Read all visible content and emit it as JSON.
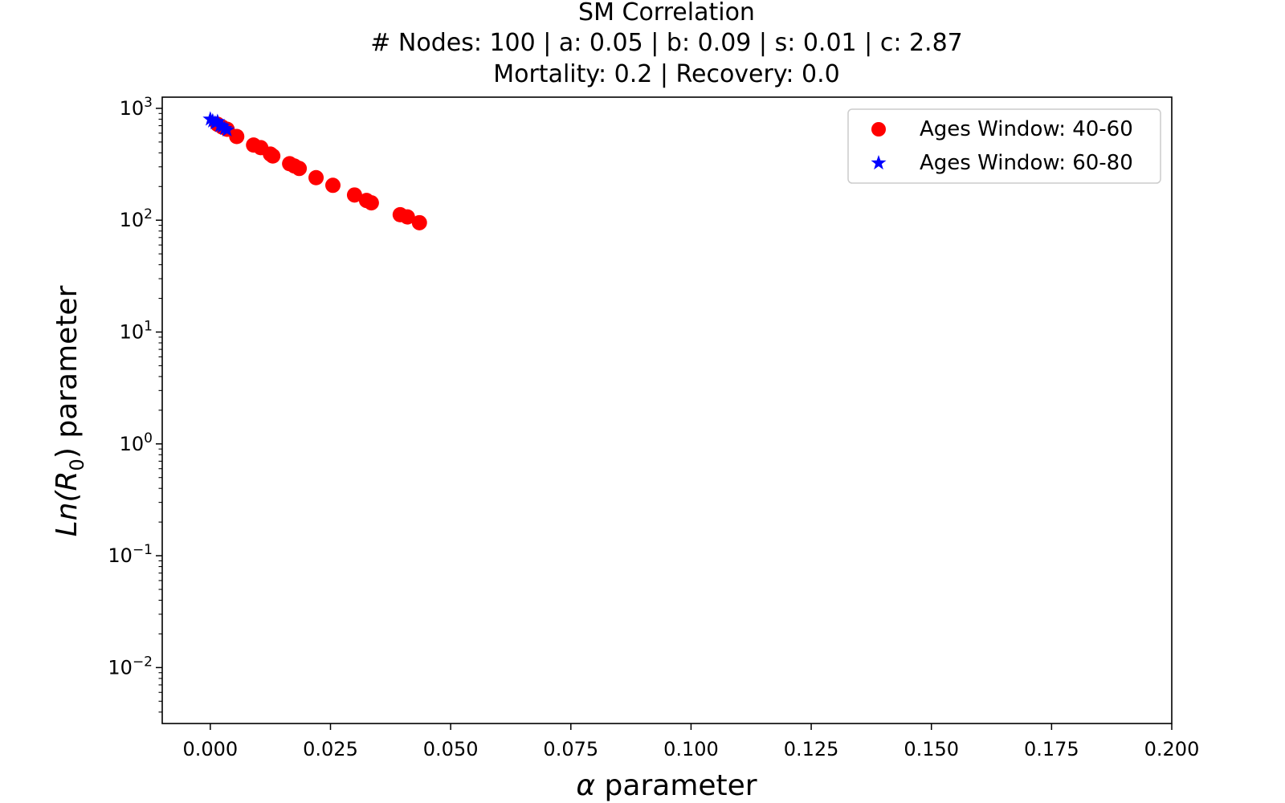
{
  "chart_data": {
    "type": "scatter",
    "title": "SM Correlation",
    "subtitle_lines": [
      "# Nodes: 100 | a: 0.05 | b: 0.09 | s: 0.01 | c: 2.87",
      "Mortality: 0.2 | Recovery: 0.0"
    ],
    "xlabel_symbol": "α",
    "xlabel_text": " parameter",
    "ylabel_main": "Ln(R",
    "ylabel_sub": "0",
    "ylabel_tail": ") parameter",
    "xlim": [
      -0.01,
      0.2
    ],
    "ylim_log10": [
      -2.5,
      3.1
    ],
    "x_scale": "linear",
    "y_scale": "log",
    "x_ticks": [
      {
        "value": 0.0,
        "label": "0.000"
      },
      {
        "value": 0.025,
        "label": "0.025"
      },
      {
        "value": 0.05,
        "label": "0.050"
      },
      {
        "value": 0.075,
        "label": "0.075"
      },
      {
        "value": 0.1,
        "label": "0.100"
      },
      {
        "value": 0.125,
        "label": "0.125"
      },
      {
        "value": 0.15,
        "label": "0.150"
      },
      {
        "value": 0.175,
        "label": "0.175"
      },
      {
        "value": 0.2,
        "label": "0.200"
      }
    ],
    "y_ticks": [
      {
        "exp": 3,
        "base": "10",
        "sup": "3"
      },
      {
        "exp": 2,
        "base": "10",
        "sup": "2"
      },
      {
        "exp": 1,
        "base": "10",
        "sup": "1"
      },
      {
        "exp": 0,
        "base": "10",
        "sup": "0"
      },
      {
        "exp": -1,
        "base": "10",
        "sup": "−1"
      },
      {
        "exp": -2,
        "base": "10",
        "sup": "−2"
      }
    ],
    "legend_position": "top-right",
    "series": [
      {
        "name": "Ages Window: 40-60",
        "marker": "circle",
        "color": "#ff0000",
        "points": [
          {
            "x": 0.0015,
            "y": 720
          },
          {
            "x": 0.0025,
            "y": 680
          },
          {
            "x": 0.0035,
            "y": 650
          },
          {
            "x": 0.0055,
            "y": 560
          },
          {
            "x": 0.009,
            "y": 470
          },
          {
            "x": 0.0105,
            "y": 445
          },
          {
            "x": 0.0125,
            "y": 390
          },
          {
            "x": 0.013,
            "y": 375
          },
          {
            "x": 0.0165,
            "y": 320
          },
          {
            "x": 0.0175,
            "y": 305
          },
          {
            "x": 0.0185,
            "y": 290
          },
          {
            "x": 0.022,
            "y": 240
          },
          {
            "x": 0.0255,
            "y": 205
          },
          {
            "x": 0.03,
            "y": 168
          },
          {
            "x": 0.0325,
            "y": 150
          },
          {
            "x": 0.0335,
            "y": 143
          },
          {
            "x": 0.0395,
            "y": 112
          },
          {
            "x": 0.041,
            "y": 107
          },
          {
            "x": 0.0435,
            "y": 95
          }
        ]
      },
      {
        "name": "Ages Window: 60-80",
        "marker": "star",
        "color": "#0000ff",
        "points": [
          {
            "x": 0.0,
            "y": 800
          },
          {
            "x": 0.0005,
            "y": 770
          },
          {
            "x": 0.001,
            "y": 740
          },
          {
            "x": 0.0015,
            "y": 760
          },
          {
            "x": 0.002,
            "y": 700
          },
          {
            "x": 0.0025,
            "y": 690
          },
          {
            "x": 0.003,
            "y": 660
          },
          {
            "x": 0.0035,
            "y": 640
          }
        ]
      }
    ]
  }
}
